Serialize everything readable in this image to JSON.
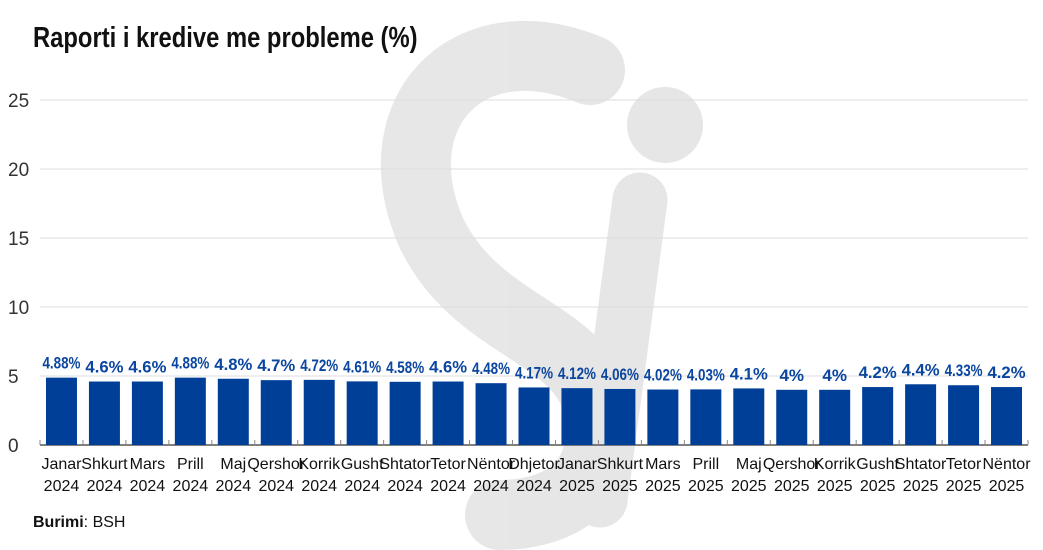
{
  "chart_data": {
    "type": "bar",
    "title": "Raporti i kredive me probleme (%)",
    "source_label": "Burimi",
    "source_value": "BSH",
    "ylim": [
      0,
      25
    ],
    "yticks": [
      0,
      5,
      10,
      15,
      20,
      25
    ],
    "grid": true,
    "bar_color": "#003f98",
    "label_color": "#0a46a0",
    "categories": [
      [
        "Janar",
        "2024"
      ],
      [
        "Shkurt",
        "2024"
      ],
      [
        "Mars",
        "2024"
      ],
      [
        "Prill",
        "2024"
      ],
      [
        "Maj",
        "2024"
      ],
      [
        "Qershor",
        "2024"
      ],
      [
        "Korrik",
        "2024"
      ],
      [
        "Gusht",
        "2024"
      ],
      [
        "Shtator",
        "2024"
      ],
      [
        "Tetor",
        "2024"
      ],
      [
        "Nëntor",
        "2024"
      ],
      [
        "Dhjetor",
        "2024"
      ],
      [
        "Janar",
        "2025"
      ],
      [
        "Shkurt",
        "2025"
      ],
      [
        "Mars",
        "2025"
      ],
      [
        "Prill",
        "2025"
      ],
      [
        "Maj",
        "2025"
      ],
      [
        "Qershor",
        "2025"
      ],
      [
        "Korrik",
        "2025"
      ],
      [
        "Gusht",
        "2025"
      ],
      [
        "Shtator",
        "2025"
      ],
      [
        "Tetor",
        "2025"
      ],
      [
        "Nëntor",
        "2025"
      ]
    ],
    "values": [
      4.88,
      4.6,
      4.6,
      4.88,
      4.8,
      4.7,
      4.72,
      4.61,
      4.58,
      4.6,
      4.48,
      4.17,
      4.12,
      4.06,
      4.02,
      4.03,
      4.1,
      4,
      4,
      4.2,
      4.4,
      4.33,
      4.2
    ],
    "value_labels": [
      "4.88%",
      "4.6%",
      "4.6%",
      "4.88%",
      "4.8%",
      "4.7%",
      "4.72%",
      "4.61%",
      "4.58%",
      "4.6%",
      "4.48%",
      "4.17%",
      "4.12%",
      "4.06%",
      "4.02%",
      "4.03%",
      "4.1%",
      "4%",
      "4%",
      "4.2%",
      "4.4%",
      "4.33%",
      "4.2%"
    ]
  }
}
